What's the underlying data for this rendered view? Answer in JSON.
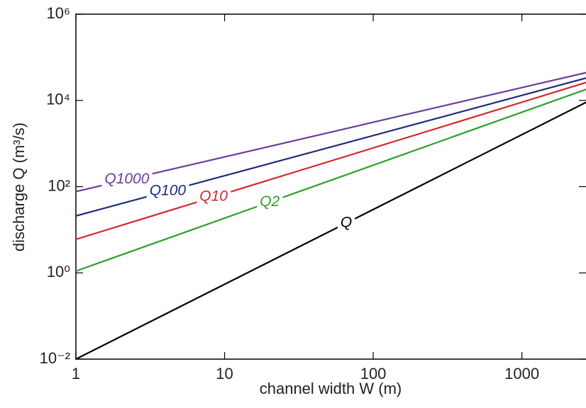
{
  "chart_data": {
    "type": "line",
    "x_label": "channel width W (m)",
    "y_label": "discharge Q (m³/s)",
    "log_x": true,
    "log_y": true,
    "x": [
      1,
      2700
    ],
    "series": [
      {
        "name": "Q1000",
        "color": "#6a3d9a",
        "values": [
          77,
          44000
        ]
      },
      {
        "name": "Q100",
        "color": "#1f2a7a",
        "values": [
          21,
          33000
        ]
      },
      {
        "name": "Q10",
        "color": "#d62728",
        "values": [
          6,
          26000
        ]
      },
      {
        "name": "Q2",
        "color": "#2ca02c",
        "values": [
          1.1,
          18000
        ]
      },
      {
        "name": "Q",
        "color": "#000000",
        "values": [
          0.01,
          9000
        ]
      }
    ],
    "xlim": [
      1,
      2700
    ],
    "ylim": [
      0.01,
      1000000
    ],
    "xticks": [
      1,
      10,
      100,
      1000
    ],
    "yticks": [
      {
        "value": 0.01,
        "label": "10⁻²"
      },
      {
        "value": 1,
        "label": "10⁰"
      },
      {
        "value": 100,
        "label": "10²"
      },
      {
        "value": 10000,
        "label": "10⁴"
      },
      {
        "value": 1000000,
        "label": "10⁶"
      }
    ]
  }
}
